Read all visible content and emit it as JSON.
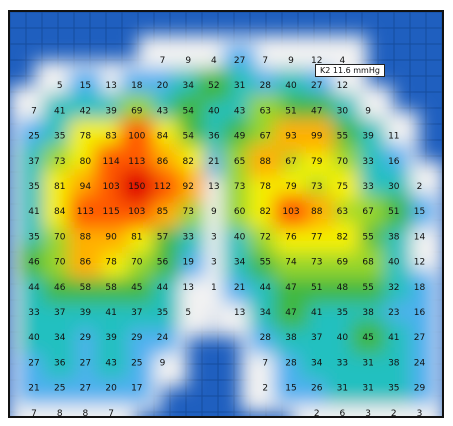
{
  "tooltip": {
    "sensor": "K2",
    "value": "11.6 mmHg"
  },
  "palette": {
    "background": "#1f5fbf",
    "grid": "#154c9e",
    "levels": [
      "#f2f2f2",
      "#4fb0f0",
      "#20c0c0",
      "#40b840",
      "#96d52a",
      "#f4f000",
      "#ffb000",
      "#ff5a00",
      "#e00000"
    ]
  },
  "pressure_grid": [
    [
      null,
      null,
      null,
      null,
      null,
      "7",
      "9",
      "4",
      "27",
      "7",
      "9",
      "12",
      "4",
      null,
      null,
      null,
      null
    ],
    [
      null,
      "5",
      "15",
      "13",
      "18",
      "20",
      "34",
      "52",
      "31",
      "28",
      "40",
      "27",
      "12",
      null,
      null,
      null,
      null
    ],
    [
      "7",
      "41",
      "42",
      "39",
      "69",
      "43",
      "54",
      "40",
      "43",
      "63",
      "51",
      "47",
      "30",
      "9",
      null,
      null,
      null
    ],
    [
      "25",
      "35",
      "78",
      "83",
      "100",
      "84",
      "54",
      "36",
      "49",
      "67",
      "93",
      "99",
      "55",
      "39",
      "11",
      null,
      null
    ],
    [
      "37",
      "73",
      "80",
      "114",
      "113",
      "86",
      "82",
      "21",
      "65",
      "88",
      "67",
      "79",
      "70",
      "33",
      "16",
      null,
      null
    ],
    [
      "35",
      "81",
      "94",
      "103",
      "150",
      "112",
      "92",
      "13",
      "73",
      "78",
      "79",
      "73",
      "75",
      "33",
      "30",
      "2",
      null
    ],
    [
      "41",
      "84",
      "113",
      "115",
      "103",
      "85",
      "73",
      "9",
      "60",
      "82",
      "103",
      "88",
      "63",
      "67",
      "51",
      "15",
      null
    ],
    [
      "35",
      "70",
      "88",
      "90",
      "81",
      "57",
      "33",
      "3",
      "40",
      "72",
      "76",
      "77",
      "82",
      "55",
      "38",
      "14",
      null
    ],
    [
      "46",
      "70",
      "86",
      "78",
      "70",
      "56",
      "19",
      "3",
      "34",
      "55",
      "74",
      "73",
      "69",
      "68",
      "40",
      "12",
      null
    ],
    [
      "44",
      "46",
      "58",
      "58",
      "45",
      "44",
      "13",
      "1",
      "21",
      "44",
      "47",
      "51",
      "48",
      "55",
      "32",
      "18",
      null
    ],
    [
      "33",
      "37",
      "39",
      "41",
      "37",
      "35",
      "5",
      null,
      "13",
      "34",
      "47",
      "41",
      "35",
      "38",
      "23",
      "16",
      null
    ],
    [
      "40",
      "34",
      "29",
      "39",
      "29",
      "24",
      null,
      null,
      null,
      "28",
      "38",
      "37",
      "40",
      "45",
      "41",
      "27",
      null
    ],
    [
      "27",
      "36",
      "27",
      "43",
      "25",
      "9",
      null,
      null,
      null,
      "7",
      "28",
      "34",
      "33",
      "31",
      "38",
      "24",
      null
    ],
    [
      "21",
      "25",
      "27",
      "20",
      "17",
      null,
      null,
      null,
      null,
      "2",
      "15",
      "26",
      "31",
      "31",
      "35",
      "29",
      null
    ],
    [
      "7",
      "8",
      "8",
      "7",
      null,
      null,
      null,
      null,
      null,
      null,
      null,
      "2",
      "6",
      "3",
      "2",
      "3",
      null
    ]
  ]
}
